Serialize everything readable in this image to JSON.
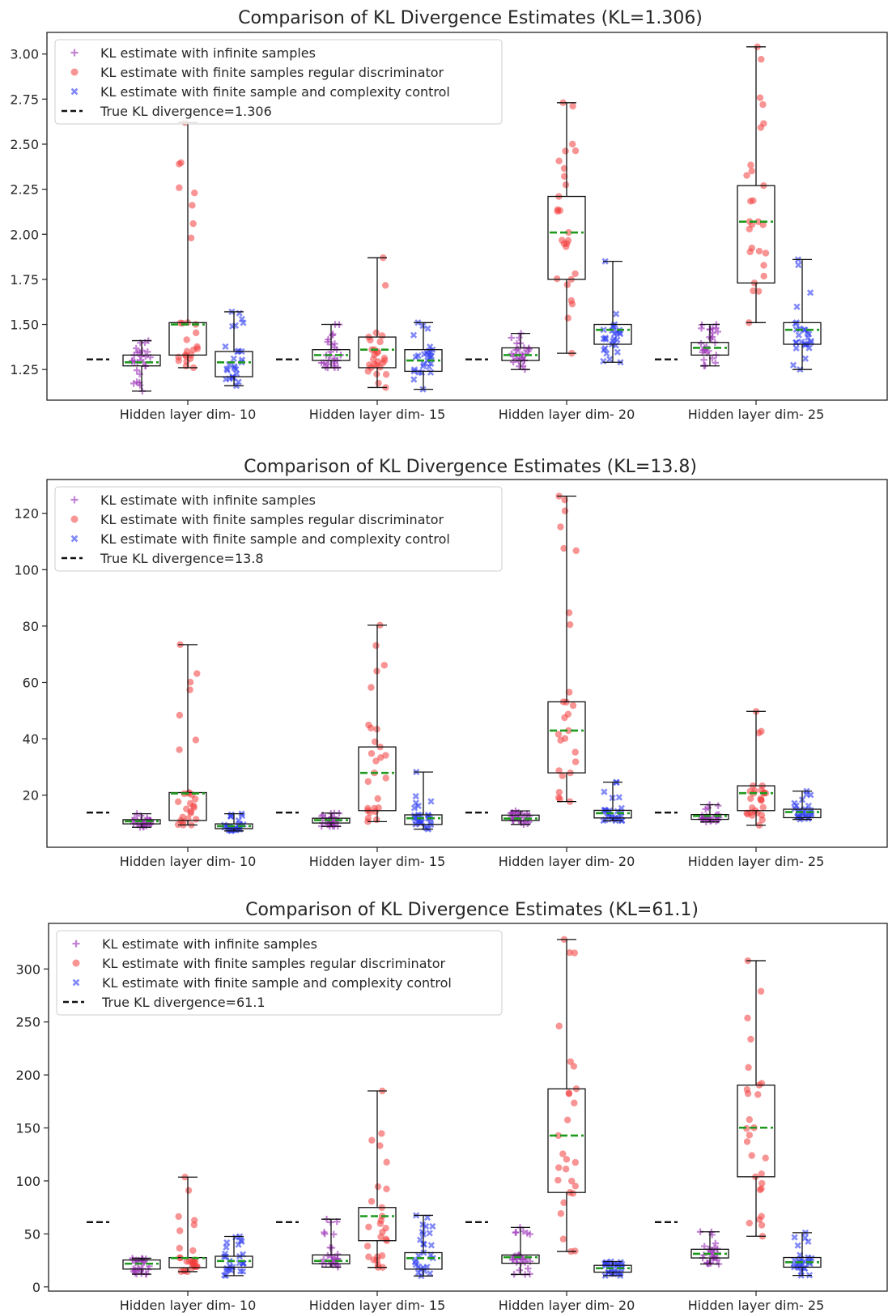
{
  "chart_data": [
    {
      "type": "box",
      "title": "Comparison of KL Divergence Estimates (KL=1.306)",
      "categories": [
        "Hidden layer dim- 10",
        "Hidden layer dim- 15",
        "Hidden layer dim- 20",
        "Hidden layer dim- 25"
      ],
      "ylim": [
        1.08,
        3.12
      ],
      "yticks": [
        1.25,
        1.5,
        1.75,
        2.0,
        2.25,
        2.5,
        2.75,
        3.0
      ],
      "ytick_labels": [
        "1.25",
        "1.50",
        "1.75",
        "2.00",
        "2.25",
        "2.50",
        "2.75",
        "3.00"
      ],
      "true_kl": 1.306,
      "legend_position": "top-left",
      "legend": {
        "infinite": "KL estimate with infinite samples",
        "regular": "KL estimate with finite samples regular discriminator",
        "complexity": "KL estimate with finite sample and complexity control",
        "true": "True KL divergence=1.306"
      },
      "series": [
        {
          "key": "infinite",
          "boxes": [
            {
              "whislo": 1.13,
              "q1": 1.27,
              "med": 1.29,
              "q3": 1.33,
              "whishi": 1.41
            },
            {
              "whislo": 1.26,
              "q1": 1.3,
              "med": 1.33,
              "q3": 1.36,
              "whishi": 1.5
            },
            {
              "whislo": 1.25,
              "q1": 1.3,
              "med": 1.33,
              "q3": 1.37,
              "whishi": 1.45
            },
            {
              "whislo": 1.27,
              "q1": 1.33,
              "med": 1.37,
              "q3": 1.4,
              "whishi": 1.5
            }
          ]
        },
        {
          "key": "regular",
          "boxes": [
            {
              "whislo": 1.26,
              "q1": 1.33,
              "med": 1.5,
              "q3": 1.51,
              "whishi": 2.62
            },
            {
              "whislo": 1.15,
              "q1": 1.26,
              "med": 1.36,
              "q3": 1.43,
              "whishi": 1.87
            },
            {
              "whislo": 1.34,
              "q1": 1.75,
              "med": 2.01,
              "q3": 2.21,
              "whishi": 2.73
            },
            {
              "whislo": 1.51,
              "q1": 1.73,
              "med": 2.07,
              "q3": 2.27,
              "whishi": 3.04
            }
          ]
        },
        {
          "key": "complexity",
          "boxes": [
            {
              "whislo": 1.16,
              "q1": 1.21,
              "med": 1.29,
              "q3": 1.35,
              "whishi": 1.57
            },
            {
              "whislo": 1.14,
              "q1": 1.24,
              "med": 1.3,
              "q3": 1.36,
              "whishi": 1.51
            },
            {
              "whislo": 1.29,
              "q1": 1.39,
              "med": 1.47,
              "q3": 1.5,
              "whishi": 1.85
            },
            {
              "whislo": 1.25,
              "q1": 1.39,
              "med": 1.47,
              "q3": 1.51,
              "whishi": 1.86
            }
          ]
        }
      ]
    },
    {
      "type": "box",
      "title": "Comparison of KL Divergence Estimates (KL=13.8)",
      "categories": [
        "Hidden layer dim- 10",
        "Hidden layer dim- 15",
        "Hidden layer dim- 20",
        "Hidden layer dim- 25"
      ],
      "ylim": [
        1.5,
        132
      ],
      "yticks": [
        20,
        40,
        60,
        80,
        100,
        120
      ],
      "ytick_labels": [
        "20",
        "40",
        "60",
        "80",
        "100",
        "120"
      ],
      "true_kl": 13.8,
      "legend_position": "top-left",
      "legend": {
        "infinite": "KL estimate with infinite samples",
        "regular": "KL estimate with finite samples regular discriminator",
        "complexity": "KL estimate with finite sample and complexity control",
        "true": "True KL divergence=13.8"
      },
      "series": [
        {
          "key": "infinite",
          "boxes": [
            {
              "whislo": 8.6,
              "q1": 9.8,
              "med": 10.7,
              "q3": 11.3,
              "whishi": 13.4
            },
            {
              "whislo": 8.9,
              "q1": 10.1,
              "med": 11.1,
              "q3": 11.8,
              "whishi": 13.6
            },
            {
              "whislo": 9.6,
              "q1": 11.0,
              "med": 11.7,
              "q3": 12.9,
              "whishi": 14.4
            },
            {
              "whislo": 10.5,
              "q1": 11.4,
              "med": 12.6,
              "q3": 13.1,
              "whishi": 16.6
            }
          ]
        },
        {
          "key": "regular",
          "boxes": [
            {
              "whislo": 9.4,
              "q1": 11.0,
              "med": 20.6,
              "q3": 20.9,
              "whishi": 73.4
            },
            {
              "whislo": 10.6,
              "q1": 14.5,
              "med": 27.9,
              "q3": 37.1,
              "whishi": 80.3
            },
            {
              "whislo": 17.7,
              "q1": 27.9,
              "med": 42.9,
              "q3": 53.1,
              "whishi": 126.1
            },
            {
              "whislo": 9.3,
              "q1": 14.5,
              "med": 20.7,
              "q3": 23.3,
              "whishi": 49.7
            }
          ]
        },
        {
          "key": "complexity",
          "boxes": [
            {
              "whislo": 7.3,
              "q1": 8.1,
              "med": 9.0,
              "q3": 9.8,
              "whishi": 13.4
            },
            {
              "whislo": 7.9,
              "q1": 9.6,
              "med": 11.8,
              "q3": 13.0,
              "whishi": 28.2
            },
            {
              "whislo": 10.9,
              "q1": 11.9,
              "med": 13.6,
              "q3": 14.6,
              "whishi": 24.6
            },
            {
              "whislo": 11.4,
              "q1": 12.0,
              "med": 14.0,
              "q3": 15.0,
              "whishi": 21.4
            }
          ]
        }
      ]
    },
    {
      "type": "box",
      "title": "Comparison of KL Divergence Estimates (KL=61.1)",
      "categories": [
        "Hidden layer dim- 10",
        "Hidden layer dim- 15",
        "Hidden layer dim- 20",
        "Hidden layer dim- 25"
      ],
      "ylim": [
        -4,
        343
      ],
      "yticks": [
        0,
        50,
        100,
        150,
        200,
        250,
        300
      ],
      "ytick_labels": [
        "0",
        "50",
        "100",
        "150",
        "200",
        "250",
        "300"
      ],
      "true_kl": 61.1,
      "legend_position": "top-left",
      "legend": {
        "infinite": "KL estimate with infinite samples",
        "regular": "KL estimate with finite samples regular discriminator",
        "complexity": "KL estimate with finite sample and complexity control",
        "true": "True KL divergence=61.1"
      },
      "series": [
        {
          "key": "infinite",
          "boxes": [
            {
              "whislo": 12.0,
              "q1": 16.8,
              "med": 21.9,
              "q3": 25.4,
              "whishi": 27.0
            },
            {
              "whislo": 18.7,
              "q1": 21.9,
              "med": 24.5,
              "q3": 30.2,
              "whishi": 63.9
            },
            {
              "whislo": 11.7,
              "q1": 22.3,
              "med": 28.0,
              "q3": 30.1,
              "whishi": 56.1
            },
            {
              "whislo": 21.6,
              "q1": 27.3,
              "med": 31.2,
              "q3": 35.5,
              "whishi": 52.0
            }
          ]
        },
        {
          "key": "regular",
          "boxes": [
            {
              "whislo": 14.4,
              "q1": 18.2,
              "med": 27.2,
              "q3": 27.6,
              "whishi": 103.6
            },
            {
              "whislo": 18.4,
              "q1": 43.6,
              "med": 66.7,
              "q3": 74.9,
              "whishi": 184.9
            },
            {
              "whislo": 33.4,
              "q1": 89.1,
              "med": 142.8,
              "q3": 186.9,
              "whishi": 327.8
            },
            {
              "whislo": 47.8,
              "q1": 103.9,
              "med": 150.2,
              "q3": 190.4,
              "whishi": 307.8
            }
          ]
        },
        {
          "key": "complexity",
          "boxes": [
            {
              "whislo": 10.6,
              "q1": 18.6,
              "med": 24.4,
              "q3": 28.9,
              "whishi": 47.6
            },
            {
              "whislo": 10.3,
              "q1": 16.7,
              "med": 27.1,
              "q3": 32.3,
              "whishi": 67.5
            },
            {
              "whislo": 10.6,
              "q1": 13.9,
              "med": 17.6,
              "q3": 20.3,
              "whishi": 23.9
            },
            {
              "whislo": 10.8,
              "q1": 18.6,
              "med": 23.3,
              "q3": 27.7,
              "whishi": 51.1
            }
          ]
        }
      ]
    }
  ],
  "colors": {
    "infinite": "#9b30b8",
    "regular": "#f23c3c",
    "complexity": "#2f3cf2",
    "median": "#1f9a1f",
    "true_line": "#111111",
    "axes": "#222222"
  }
}
